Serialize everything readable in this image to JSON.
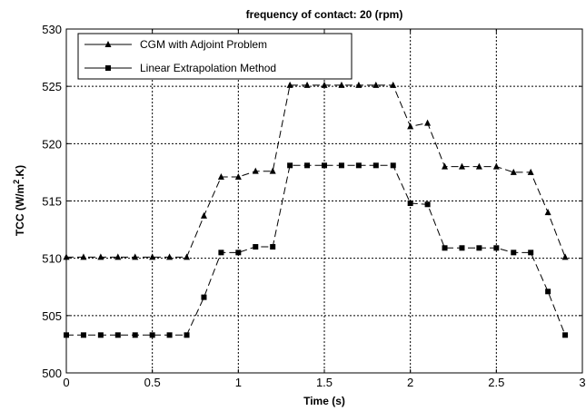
{
  "chart_data": {
    "type": "line",
    "title": "frequency of contact: 20 (rpm)",
    "xlabel": "Time (s)",
    "ylabel": "TCC (W/m².K)",
    "ylabel_parts": {
      "pre": "TCC (W/m",
      "sup": "2",
      "post": ".K)"
    },
    "xlim": [
      0,
      3
    ],
    "ylim": [
      500,
      530
    ],
    "xticks": [
      0,
      0.5,
      1,
      1.5,
      2,
      2.5,
      3
    ],
    "xtick_labels": [
      "0",
      "0.5",
      "1",
      "1.5",
      "2",
      "2.5",
      "3"
    ],
    "yticks": [
      500,
      505,
      510,
      515,
      520,
      525,
      530
    ],
    "ytick_labels": [
      "500",
      "505",
      "510",
      "515",
      "520",
      "525",
      "530"
    ],
    "grid": true,
    "legend_position": "top-left",
    "x": [
      0,
      0.1,
      0.2,
      0.3,
      0.4,
      0.5,
      0.6,
      0.7,
      0.8,
      0.9,
      1.0,
      1.1,
      1.2,
      1.3,
      1.4,
      1.5,
      1.6,
      1.7,
      1.8,
      1.9,
      2.0,
      2.1,
      2.2,
      2.3,
      2.4,
      2.5,
      2.6,
      2.7,
      2.8,
      2.9
    ],
    "series": [
      {
        "name": "CGM with Adjoint Problem",
        "marker": "triangle",
        "color": "#000000",
        "values": [
          510.1,
          510.1,
          510.1,
          510.1,
          510.1,
          510.1,
          510.1,
          510.1,
          513.7,
          517.1,
          517.1,
          517.6,
          517.6,
          525.1,
          525.1,
          525.1,
          525.1,
          525.1,
          525.1,
          525.1,
          521.5,
          521.8,
          518.0,
          518.0,
          518.0,
          518.0,
          517.5,
          517.5,
          514.0,
          510.1
        ]
      },
      {
        "name": "Linear Extrapolation Method",
        "marker": "square",
        "color": "#000000",
        "values": [
          503.3,
          503.3,
          503.3,
          503.3,
          503.3,
          503.3,
          503.3,
          503.3,
          506.6,
          510.5,
          510.5,
          511.0,
          511.0,
          518.1,
          518.1,
          518.1,
          518.1,
          518.1,
          518.1,
          518.1,
          514.8,
          514.7,
          510.9,
          510.9,
          510.9,
          510.9,
          510.5,
          510.5,
          507.1,
          503.3
        ]
      }
    ]
  }
}
